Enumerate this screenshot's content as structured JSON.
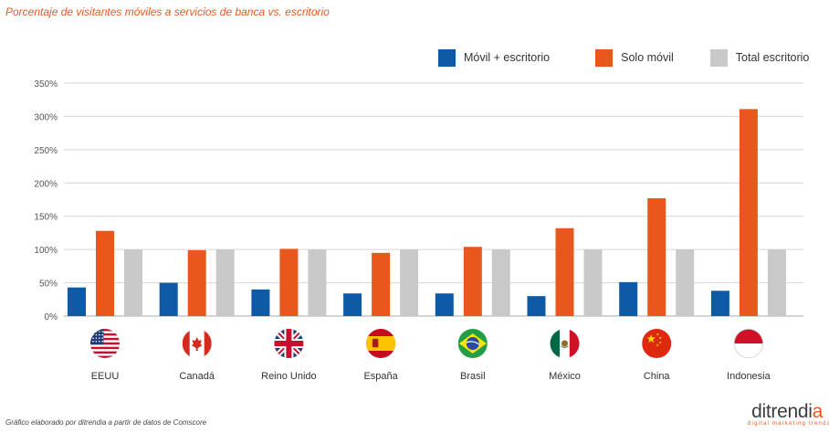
{
  "title": "Porcentaje de visitantes móviles a servicios de banca vs. escritorio",
  "source": "Gráfico elaborado por ditrendia a partir de datos de Comscore",
  "brand": {
    "name_main": "ditrendi",
    "name_accent": "a",
    "tagline": "digital marketing trends"
  },
  "colors": {
    "movil_escritorio": "#0e5aa7",
    "solo_movil": "#e8581c",
    "total_escritorio": "#c9c9c9"
  },
  "chart_data": {
    "type": "bar",
    "title": "Porcentaje de visitantes móviles a servicios de banca vs. escritorio",
    "categories": [
      "EEUU",
      "Canadá",
      "Reino Unido",
      "España",
      "Brasil",
      "México",
      "China",
      "Indonesia"
    ],
    "category_flags": [
      "us-flag-icon",
      "canada-flag-icon",
      "uk-flag-icon",
      "spain-flag-icon",
      "brazil-flag-icon",
      "mexico-flag-icon",
      "china-flag-icon",
      "indonesia-flag-icon"
    ],
    "series": [
      {
        "name": "Móvil + escritorio",
        "values": [
          43,
          50,
          40,
          34,
          34,
          30,
          51,
          38
        ]
      },
      {
        "name": "Solo móvil",
        "values": [
          128,
          99,
          101,
          95,
          104,
          132,
          177,
          311
        ]
      },
      {
        "name": "Total escritorio",
        "values": [
          100,
          100,
          100,
          100,
          100,
          100,
          100,
          100
        ]
      }
    ],
    "y_ticks": [
      "0%",
      "50%",
      "100%",
      "150%",
      "200%",
      "250%",
      "300%",
      "350%"
    ],
    "ylim": [
      0,
      350
    ],
    "xlabel": "",
    "ylabel": "",
    "grid": true,
    "legend": "top-right"
  }
}
